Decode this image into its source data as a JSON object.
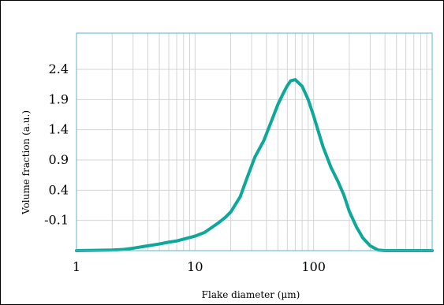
{
  "chart_data": {
    "type": "line",
    "title": "",
    "xlabel": "Flake diameter (µm)",
    "ylabel": "Volume fraction (a.u.)",
    "x_scale": "log",
    "xlim": [
      1,
      1000
    ],
    "ylim": [
      -0.6,
      3.0
    ],
    "grid": true,
    "x_ticks": [
      {
        "value": 1,
        "label": "1"
      },
      {
        "value": 10,
        "label": "10"
      },
      {
        "value": 100,
        "label": "100"
      }
    ],
    "y_ticks": [
      {
        "value": -0.1,
        "label": "-0.1"
      },
      {
        "value": 0.4,
        "label": "0.4"
      },
      {
        "value": 0.9,
        "label": "0.9"
      },
      {
        "value": 1.4,
        "label": "1.4"
      },
      {
        "value": 1.9,
        "label": "1.9"
      },
      {
        "value": 2.4,
        "label": "2.4"
      }
    ],
    "series": [
      {
        "color": "#0ea89a",
        "x": [
          1,
          2,
          2.5,
          3,
          4,
          5,
          6,
          7,
          8,
          10,
          12,
          14,
          16,
          18,
          20,
          24,
          28,
          32,
          38,
          44,
          50,
          56,
          60,
          64,
          70,
          80,
          90,
          100,
          120,
          140,
          160,
          180,
          200,
          230,
          260,
          300,
          350,
          400,
          500,
          700,
          1000
        ],
        "y": [
          -0.6,
          -0.59,
          -0.58,
          -0.56,
          -0.52,
          -0.49,
          -0.46,
          -0.44,
          -0.41,
          -0.36,
          -0.3,
          -0.21,
          -0.13,
          -0.05,
          0.04,
          0.29,
          0.65,
          0.95,
          1.22,
          1.54,
          1.82,
          2.02,
          2.13,
          2.21,
          2.23,
          2.12,
          1.9,
          1.63,
          1.12,
          0.78,
          0.55,
          0.32,
          0.05,
          -0.21,
          -0.39,
          -0.52,
          -0.59,
          -0.6,
          -0.6,
          -0.6,
          -0.6
        ]
      }
    ]
  }
}
